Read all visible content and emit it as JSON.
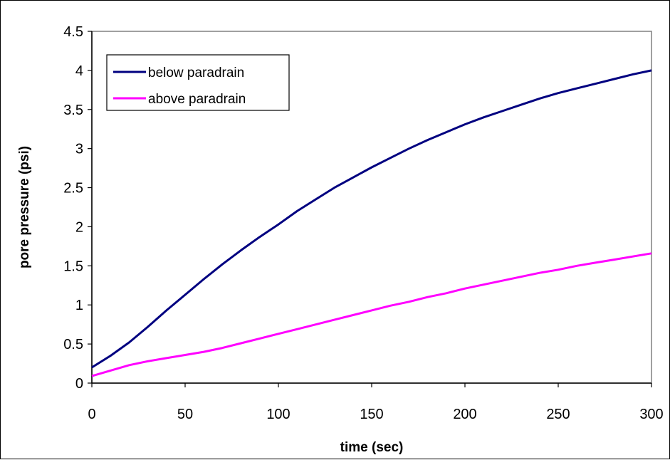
{
  "chart_data": {
    "type": "line",
    "title": "",
    "xlabel": "time (sec)",
    "ylabel": "pore pressure (psi)",
    "xlim": [
      0,
      300
    ],
    "ylim": [
      0,
      4.5
    ],
    "x_ticks": [
      "0",
      "50",
      "100",
      "150",
      "200",
      "250",
      "300"
    ],
    "y_ticks": [
      "0",
      "0.5",
      "1",
      "1.5",
      "2",
      "2.5",
      "3",
      "3.5",
      "4",
      "4.5"
    ],
    "grid": false,
    "legend_position": "top-left",
    "series": [
      {
        "name": "below paradrain",
        "color": "#000080",
        "x": [
          0,
          10,
          20,
          30,
          40,
          50,
          60,
          70,
          80,
          90,
          100,
          110,
          120,
          130,
          140,
          150,
          160,
          170,
          180,
          190,
          200,
          210,
          220,
          230,
          240,
          250,
          260,
          270,
          280,
          290,
          300
        ],
        "y": [
          0.2,
          0.35,
          0.52,
          0.72,
          0.93,
          1.13,
          1.33,
          1.52,
          1.7,
          1.87,
          2.03,
          2.2,
          2.35,
          2.5,
          2.63,
          2.76,
          2.88,
          3.0,
          3.11,
          3.21,
          3.31,
          3.4,
          3.48,
          3.56,
          3.64,
          3.71,
          3.77,
          3.83,
          3.89,
          3.95,
          4.0
        ]
      },
      {
        "name": "above paradrain",
        "color": "#FF00FF",
        "x": [
          0,
          10,
          20,
          30,
          40,
          50,
          60,
          70,
          80,
          90,
          100,
          110,
          120,
          130,
          140,
          150,
          160,
          170,
          180,
          190,
          200,
          210,
          220,
          230,
          240,
          250,
          260,
          270,
          280,
          290,
          300
        ],
        "y": [
          0.09,
          0.16,
          0.23,
          0.28,
          0.32,
          0.36,
          0.4,
          0.45,
          0.51,
          0.57,
          0.63,
          0.69,
          0.75,
          0.81,
          0.87,
          0.93,
          0.99,
          1.04,
          1.1,
          1.15,
          1.21,
          1.26,
          1.31,
          1.36,
          1.41,
          1.45,
          1.5,
          1.54,
          1.58,
          1.62,
          1.66
        ]
      }
    ]
  }
}
